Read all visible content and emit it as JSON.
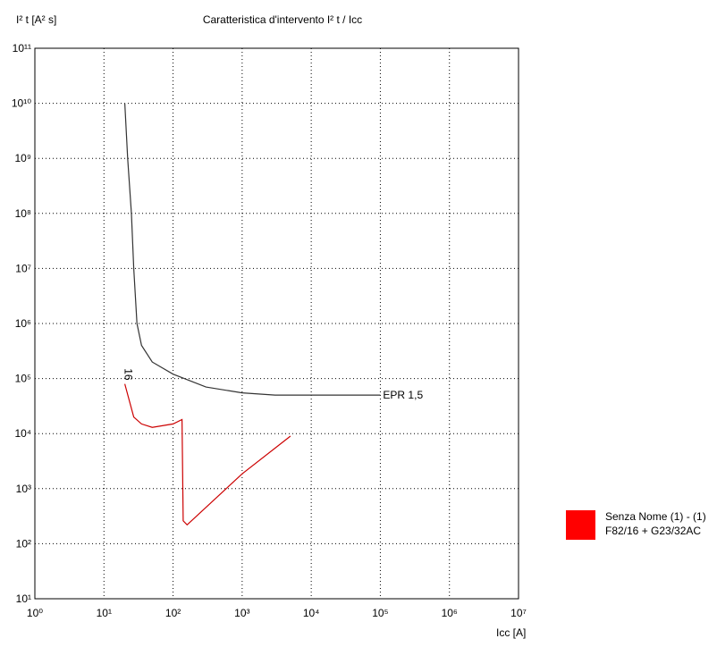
{
  "chart_data": {
    "type": "line",
    "title": "Caratteristica d'intervento I² t / Icc",
    "y_label": "I² t [A² s]",
    "x_label": "Icc [A]",
    "log_x": true,
    "log_y": true,
    "grid": true,
    "xlim": [
      1,
      10000000
    ],
    "ylim": [
      10,
      100000000000
    ],
    "xticks": [
      {
        "value": 1,
        "label": "10⁰"
      },
      {
        "value": 10,
        "label": "10¹"
      },
      {
        "value": 100,
        "label": "10²"
      },
      {
        "value": 1000,
        "label": "10³"
      },
      {
        "value": 10000,
        "label": "10⁴"
      },
      {
        "value": 100000,
        "label": "10⁵"
      },
      {
        "value": 1000000,
        "label": "10⁶"
      },
      {
        "value": 10000000,
        "label": "10⁷"
      }
    ],
    "yticks": [
      {
        "value": 10,
        "label": "10¹"
      },
      {
        "value": 100,
        "label": "10²"
      },
      {
        "value": 1000,
        "label": "10³"
      },
      {
        "value": 10000,
        "label": "10⁴"
      },
      {
        "value": 100000,
        "label": "10⁵"
      },
      {
        "value": 1000000,
        "label": "10⁶"
      },
      {
        "value": 10000000,
        "label": "10⁷"
      },
      {
        "value": 100000000,
        "label": "10⁸"
      },
      {
        "value": 1000000000,
        "label": "10⁹"
      },
      {
        "value": 10000000000,
        "label": "10¹⁰"
      },
      {
        "value": 100000000000,
        "label": "10¹¹"
      }
    ],
    "series": [
      {
        "name": "EPR 1,5",
        "color": "#333333",
        "x": [
          20,
          22,
          25,
          27,
          30,
          35,
          50,
          100,
          300,
          1000,
          3000,
          100000
        ],
        "values": [
          10000000000,
          1000000000,
          100000000,
          10000000,
          1000000,
          400000,
          200000,
          120000,
          70000,
          55000,
          50000,
          50000
        ]
      },
      {
        "name": "16",
        "color": "#cc0000",
        "x": [
          20,
          27,
          35,
          50,
          100,
          135,
          140,
          160,
          1000,
          5000
        ],
        "values": [
          80000,
          20000,
          15000,
          13000,
          15000,
          18000,
          260,
          220,
          1860,
          9000
        ]
      }
    ],
    "legend": {
      "color": "#ff0000",
      "lines": [
        "Senza Nome (1) -  (1)",
        "F82/16 + G23/32AC"
      ]
    }
  }
}
